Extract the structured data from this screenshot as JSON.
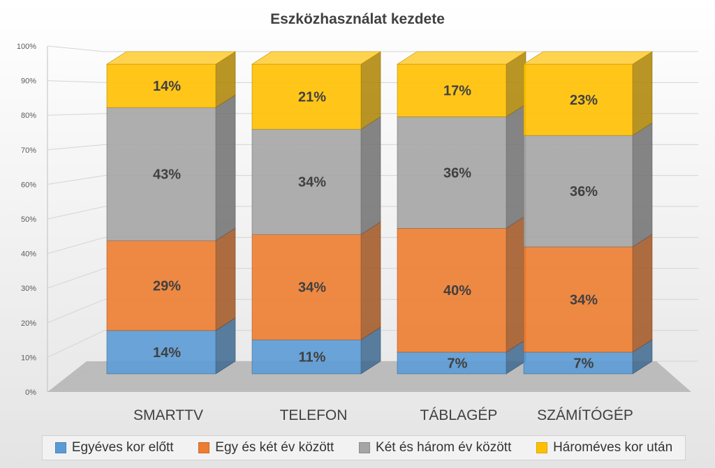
{
  "chart_data": {
    "type": "bar",
    "stacked": true,
    "title": "Eszközhasználat kezdete",
    "categories": [
      "SMARTTV",
      "TELEFON",
      "TÁBLAGÉP",
      "SZÁMÍTÓGÉP"
    ],
    "series": [
      {
        "name": "Egyéves kor előtt",
        "color": "#5b9bd5",
        "values": [
          14,
          11,
          7,
          7
        ],
        "labels": [
          "14%",
          "11%",
          "7%",
          "7%"
        ]
      },
      {
        "name": "Egy és két év között",
        "color": "#ed7d31",
        "values": [
          29,
          34,
          40,
          34
        ],
        "labels": [
          "29%",
          "34%",
          "40%",
          "34%"
        ]
      },
      {
        "name": "Két és három év között",
        "color": "#a5a5a5",
        "values": [
          43,
          34,
          36,
          36
        ],
        "labels": [
          "43%",
          "34%",
          "36%",
          "36%"
        ]
      },
      {
        "name": "Hároméves kor után",
        "color": "#ffc000",
        "values": [
          14,
          21,
          17,
          23
        ],
        "labels": [
          "14%",
          "21%",
          "17%",
          "23%"
        ]
      }
    ],
    "ylim": [
      0,
      100
    ],
    "yticks": [
      "0%",
      "10%",
      "20%",
      "30%",
      "40%",
      "50%",
      "60%",
      "70%",
      "80%",
      "90%",
      "100%"
    ],
    "grid": true,
    "legend_position": "bottom"
  }
}
